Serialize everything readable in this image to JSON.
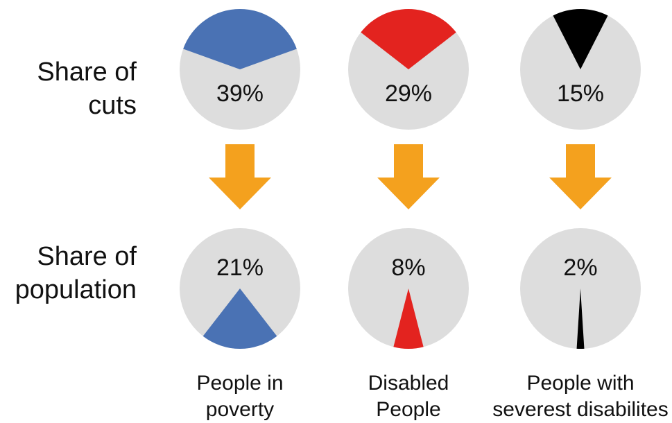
{
  "row_labels": {
    "cuts": [
      "Share of",
      "cuts"
    ],
    "population": [
      "Share of",
      "population"
    ]
  },
  "colors": {
    "background_circle": "#dddddd",
    "arrow": "#f4a11e",
    "label_text": "#111111"
  },
  "chart_data": {
    "type": "pie",
    "title": "",
    "rows": [
      "Share of cuts",
      "Share of population"
    ],
    "categories": [
      {
        "label_lines": [
          "People in",
          "poverty"
        ],
        "color": "#4a72b4",
        "share_of_cuts": 39,
        "share_of_population": 21,
        "cuts_label": "39%",
        "population_label": "21%"
      },
      {
        "label_lines": [
          "Disabled",
          "People"
        ],
        "color": "#e3231f",
        "share_of_cuts": 29,
        "share_of_population": 8,
        "cuts_label": "29%",
        "population_label": "8%"
      },
      {
        "label_lines": [
          "People with",
          "severest disabilites"
        ],
        "color": "#000000",
        "share_of_cuts": 15,
        "share_of_population": 2,
        "cuts_label": "15%",
        "population_label": "2%"
      }
    ],
    "unit": "%",
    "legend": "none"
  }
}
